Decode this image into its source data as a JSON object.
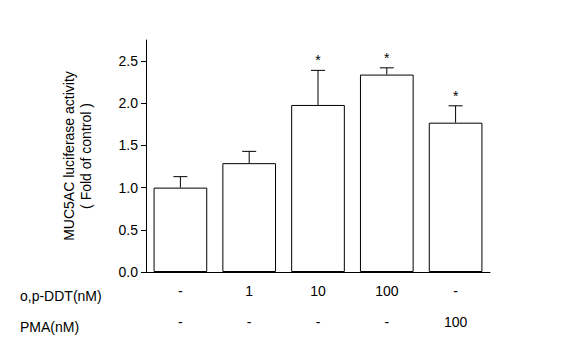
{
  "chart_data": {
    "type": "bar",
    "y_label": "MUC5AC luciferase activity\n( Fold of control )",
    "treatments": [
      {
        "name": "o,p-DDT(nM)",
        "levels": [
          "-",
          "1",
          "10",
          "100",
          "-"
        ]
      },
      {
        "name": "PMA(nM)",
        "levels": [
          "-",
          "-",
          "-",
          "-",
          "100"
        ]
      }
    ],
    "values": [
      1.0,
      1.29,
      1.98,
      2.34,
      1.77
    ],
    "errors": [
      0.13,
      0.14,
      0.41,
      0.08,
      0.2
    ],
    "significant": [
      false,
      false,
      true,
      true,
      true
    ],
    "annotation_text": "*",
    "color": "#ffffff",
    "ylim": [
      0,
      2.75
    ],
    "yticks": [
      {
        "value": 0,
        "label": "0.0"
      },
      {
        "value": 0.5,
        "label": "0.5"
      },
      {
        "value": 1,
        "label": "1.0"
      },
      {
        "value": 1.5,
        "label": "1.5"
      },
      {
        "value": 2,
        "label": "2.0"
      },
      {
        "value": 2.5,
        "label": "2.5"
      }
    ],
    "grid": false
  }
}
